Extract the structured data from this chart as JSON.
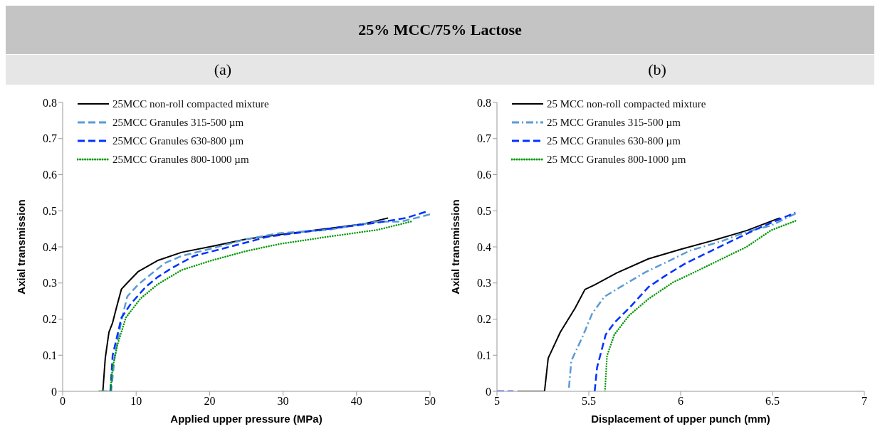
{
  "chart_data": [
    {
      "type": "line",
      "title": "25% MCC/75% Lactose",
      "subtitle": "(a)",
      "xlabel": "Applied upper pressure (MPa)",
      "ylabel": "Axial transmission",
      "xlim": [
        0,
        50
      ],
      "xticks": [
        0,
        10,
        20,
        30,
        40,
        50
      ],
      "ylim": [
        0,
        0.8
      ],
      "yticks": [
        0,
        0.1,
        0.2,
        0.3,
        0.4,
        0.5,
        0.6,
        0.7,
        0.8
      ],
      "grid": false,
      "legend": "top left",
      "marker": "none",
      "series": [
        {
          "name": "25MCC non-roll compacted mixture",
          "color": "#000000",
          "line_style": "solid",
          "x": [
            5.47,
            5.8,
            6.3,
            6.8,
            7.3,
            8.0,
            8.6,
            10.3,
            12.9,
            16.2,
            20.2,
            24.9,
            29.5,
            36.1,
            41.1,
            44.3
          ],
          "values": [
            0,
            0.092,
            0.164,
            0.19,
            0.23,
            0.283,
            0.296,
            0.332,
            0.362,
            0.385,
            0.401,
            0.421,
            0.434,
            0.451,
            0.464,
            0.48
          ]
        },
        {
          "name": "25MCC Granules 315-500 µm",
          "color": "#5b9bd5",
          "line_style": "dashed",
          "x": [
            5.0,
            6.6,
            7.1,
            8.0,
            8.8,
            10.3,
            12.3,
            13.9,
            16.2,
            20.2,
            24.9,
            29.5,
            36.1,
            42.8,
            46.1,
            50.0
          ],
          "values": [
            0,
            0,
            0.099,
            0.197,
            0.263,
            0.296,
            0.329,
            0.355,
            0.375,
            0.395,
            0.421,
            0.438,
            0.447,
            0.47,
            0.47,
            0.49
          ]
        },
        {
          "name": "25MCC Granules 630-800 µm",
          "color": "#0033ff",
          "line_style": "dashed",
          "x": [
            6.5,
            6.8,
            8.0,
            9.3,
            11.3,
            12.9,
            14.9,
            17.9,
            22.9,
            27.9,
            32.8,
            37.8,
            42.8,
            46.7,
            49.4
          ],
          "values": [
            0,
            0.099,
            0.204,
            0.243,
            0.289,
            0.316,
            0.342,
            0.375,
            0.401,
            0.428,
            0.441,
            0.454,
            0.467,
            0.48,
            0.497
          ]
        },
        {
          "name": "25MCC Granules 800-1000 µm",
          "color": "#009900",
          "line_style": "dotted",
          "x": [
            5.0,
            6.5,
            6.8,
            7.5,
            8.6,
            10.6,
            12.9,
            16.2,
            20.2,
            24.9,
            29.5,
            36.1,
            42.8,
            47.4
          ],
          "values": [
            0,
            0,
            0.066,
            0.132,
            0.204,
            0.257,
            0.296,
            0.336,
            0.362,
            0.388,
            0.408,
            0.428,
            0.447,
            0.47
          ]
        }
      ]
    },
    {
      "type": "line",
      "subtitle": "(b)",
      "xlabel": "Displacement of upper punch (mm)",
      "ylabel": "Axial transmission",
      "xlim": [
        5,
        7
      ],
      "xticks": [
        5,
        5.5,
        6,
        6.5,
        7
      ],
      "ylim": [
        0,
        0.8
      ],
      "yticks": [
        0,
        0.1,
        0.2,
        0.3,
        0.4,
        0.5,
        0.6,
        0.7,
        0.8
      ],
      "grid": false,
      "legend": "top left",
      "marker": "none",
      "series": [
        {
          "name": "25 MCC non-roll compacted mixture",
          "color": "#000000",
          "line_style": "solid",
          "x": [
            5.112,
            5.259,
            5.279,
            5.345,
            5.425,
            5.479,
            5.532,
            5.652,
            5.825,
            5.999,
            6.185,
            6.359,
            6.539
          ],
          "values": [
            0,
            0,
            0.092,
            0.164,
            0.23,
            0.282,
            0.295,
            0.328,
            0.367,
            0.393,
            0.419,
            0.445,
            0.48
          ]
        },
        {
          "name": "25 MCC Granules 315-500 µm",
          "color": "#5b9bd5",
          "line_style": "dashdot",
          "x": [
            5.392,
            5.405,
            5.465,
            5.519,
            5.585,
            5.692,
            5.812,
            5.932,
            6.052,
            6.225,
            6.359,
            6.492,
            6.625
          ],
          "values": [
            0.01,
            0.085,
            0.15,
            0.216,
            0.262,
            0.295,
            0.331,
            0.36,
            0.39,
            0.416,
            0.442,
            0.459,
            0.492
          ]
        },
        {
          "name": "25 MCC Granules 630-800 µm",
          "color": "#0033ff",
          "line_style": "dashed",
          "x": [
            5.0,
            5.09,
            5.3,
            5.532,
            5.545,
            5.592,
            5.639,
            5.719,
            5.825,
            5.919,
            6.025,
            6.159,
            6.292,
            6.425,
            6.625
          ],
          "values": [
            0,
            0,
            null,
            0,
            0.066,
            0.157,
            0.19,
            0.23,
            0.289,
            0.321,
            0.354,
            0.387,
            0.42,
            0.452,
            0.495
          ]
        },
        {
          "name": "25 MCC Granules 800-1000 µm",
          "color": "#009900",
          "line_style": "dotted",
          "x": [
            5.588,
            5.599,
            5.639,
            5.719,
            5.825,
            5.959,
            6.092,
            6.225,
            6.359,
            6.492,
            6.625
          ],
          "values": [
            0,
            0.098,
            0.157,
            0.21,
            0.256,
            0.302,
            0.334,
            0.367,
            0.4,
            0.446,
            0.472
          ]
        }
      ]
    }
  ]
}
